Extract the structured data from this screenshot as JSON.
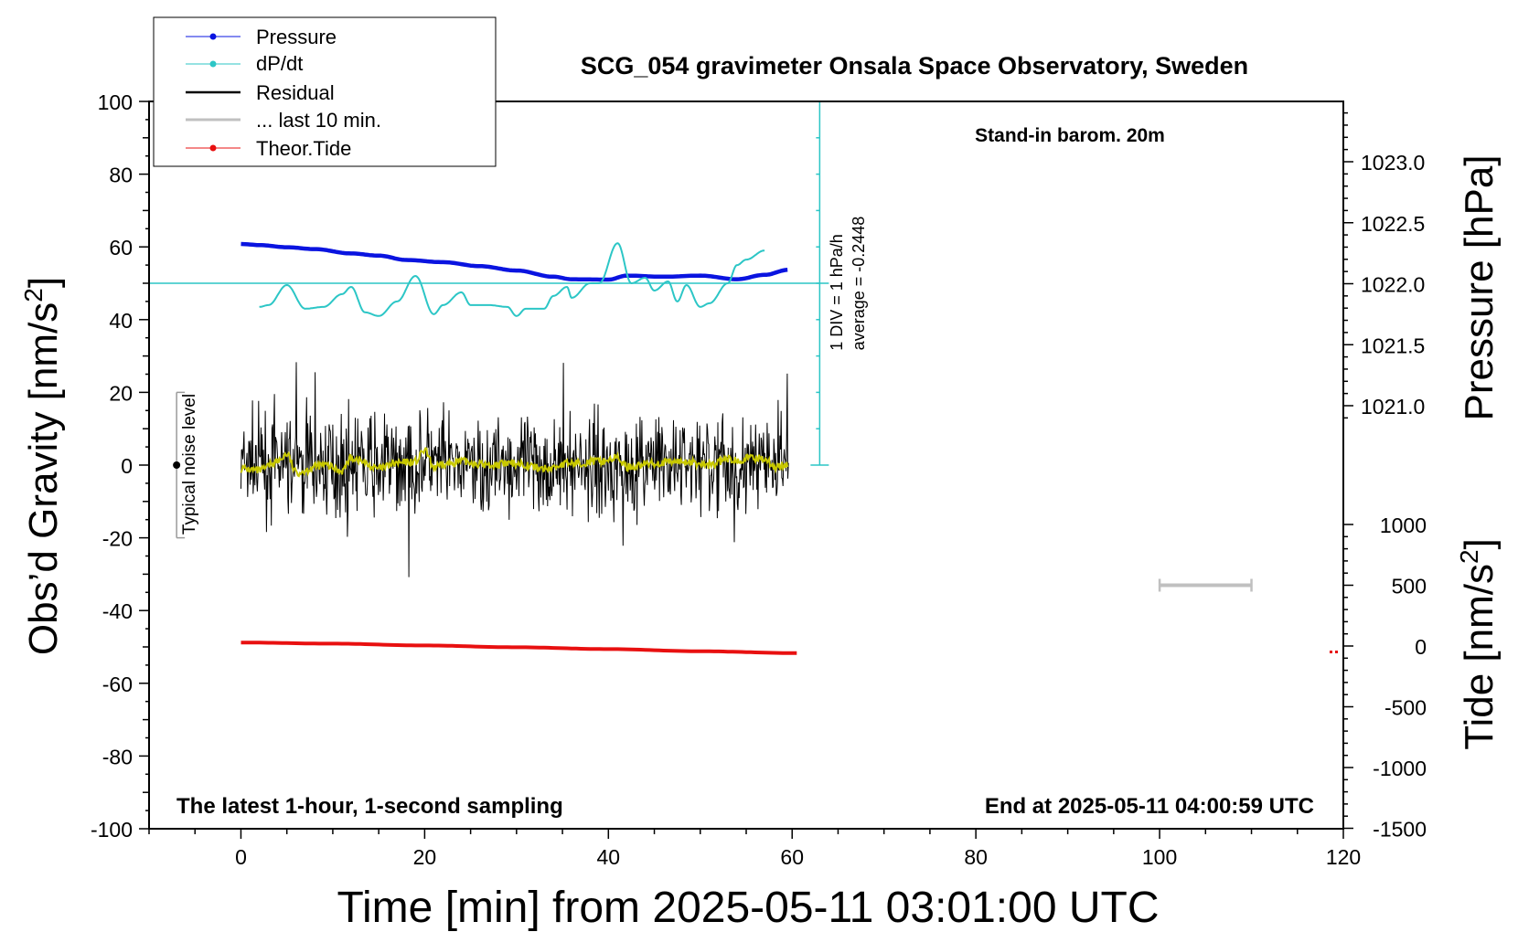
{
  "chart_data": {
    "type": "line",
    "title": "SCG_054 gravimeter Onsala Space Observatory, Sweden",
    "xlabel": "Time [min] from 2025-05-11 03:01:00 UTC",
    "ylabel_left_text": "Obs’d Gravity [nm/s",
    "ylabel_right_top": "Pressure [hPa]",
    "ylabel_right_bottom_text": "Tide [nm/s",
    "unit_exponent": "2",
    "xlim": [
      -10,
      120
    ],
    "ylim_left": [
      -100,
      100
    ],
    "xticks": [
      0,
      20,
      40,
      60,
      80,
      100,
      120
    ],
    "yticks_left": [
      -100,
      -80,
      -60,
      -40,
      -20,
      0,
      20,
      40,
      60,
      80,
      100
    ],
    "yticks_pressure": [
      "1021.0",
      "1021.5",
      "1022.0",
      "1022.5",
      "1023.0"
    ],
    "yticks_tide": [
      "-1500",
      "-1000",
      "-500",
      "0",
      "500",
      "1000"
    ],
    "legend": [
      "Pressure",
      "dP/dt",
      "Residual",
      "... last 10 min.",
      "Theor.Tide"
    ],
    "legend_position": "top-left",
    "annotations": {
      "stand_in": "Stand-in barom. 20m",
      "latest": "The latest 1-hour, 1-second sampling",
      "end_at": "End at 2025-05-11 04:00:59 UTC",
      "div_scale": "1 DIV = 1 hPa/h",
      "average": "average = -0.2448",
      "noise": "Typical noise level"
    },
    "colors": {
      "pressure": "#0a14e0",
      "dpdt": "#2cc6c6",
      "residual": "#000000",
      "last10": "#c0c0c0",
      "tide": "#e81010",
      "smoothed": "#c8c800",
      "scale": "#2cc6c6",
      "noise": "#9a9a9a"
    },
    "series": [
      {
        "name": "Pressure",
        "y_axis": "left-scale",
        "x": [
          0,
          2,
          5,
          8,
          12,
          15,
          18,
          22,
          26,
          30,
          34,
          36,
          40,
          42,
          46,
          50,
          54,
          57,
          59.6
        ],
        "values": [
          60.8,
          60.5,
          59.9,
          59.4,
          58.2,
          57.6,
          56.4,
          55.8,
          54.7,
          53.5,
          51.8,
          51.1,
          51.0,
          52.1,
          51.8,
          52.1,
          51.1,
          52.3,
          53.7
        ]
      },
      {
        "name": "dP/dt",
        "y_axis": "left-scale",
        "x": [
          2,
          3,
          5,
          7,
          9,
          11,
          12,
          13.5,
          15,
          17,
          19,
          21,
          22,
          24,
          25,
          27,
          29,
          30,
          31,
          33,
          34,
          35.5,
          36,
          38,
          39,
          41,
          42.5,
          44,
          45,
          46.5,
          47.5,
          48.5,
          50,
          51,
          53,
          54,
          55,
          57
        ],
        "values": [
          43.5,
          44,
          49.5,
          43,
          43.5,
          47,
          49,
          42,
          41,
          45,
          52,
          41.5,
          44,
          47.5,
          44,
          44,
          43.5,
          41,
          43,
          43,
          46.5,
          49,
          46,
          50,
          50,
          61,
          50,
          51.5,
          48,
          50.5,
          45,
          49.5,
          43.5,
          44.5,
          50,
          55,
          56.5,
          59
        ]
      },
      {
        "name": "Residual smoothed",
        "y_axis": "left",
        "x": [
          0,
          2,
          4,
          5,
          6,
          9,
          11,
          12,
          15,
          17,
          19,
          20,
          21,
          24,
          27,
          30,
          33,
          36,
          39,
          41,
          42,
          45,
          48,
          51,
          53,
          57,
          58,
          59.6
        ],
        "values": [
          -1,
          -1.5,
          1,
          3,
          -2,
          0,
          -1.5,
          2,
          -1,
          0.5,
          1,
          4,
          -0.5,
          1,
          0,
          0.5,
          -1,
          0.5,
          1,
          2,
          -0.5,
          0.5,
          1,
          0,
          1.5,
          2,
          -0.5,
          0
        ]
      },
      {
        "name": "Theor.Tide",
        "y_axis": "left-scale",
        "x": [
          0,
          10,
          20,
          30,
          40,
          50,
          60.5
        ],
        "values": [
          -48.8,
          -49.1,
          -49.6,
          -50.1,
          -50.6,
          -51.2,
          -51.7
        ]
      },
      {
        "name": "... last 10 min.",
        "y_axis": "right-tide",
        "x": [
          100,
          110
        ],
        "values": [
          500,
          500
        ]
      }
    ],
    "residual": {
      "x_range": [
        0,
        59.6
      ],
      "typical_amplitude": 12,
      "peak_max": 33,
      "peak_min": -32
    },
    "noise_bar": {
      "x": -7,
      "ymin": -20,
      "ymax": 20,
      "center": 0
    },
    "dpdt_scale": {
      "x": 63,
      "ymin": 0,
      "ymax": 100,
      "reference_level": 50
    }
  }
}
